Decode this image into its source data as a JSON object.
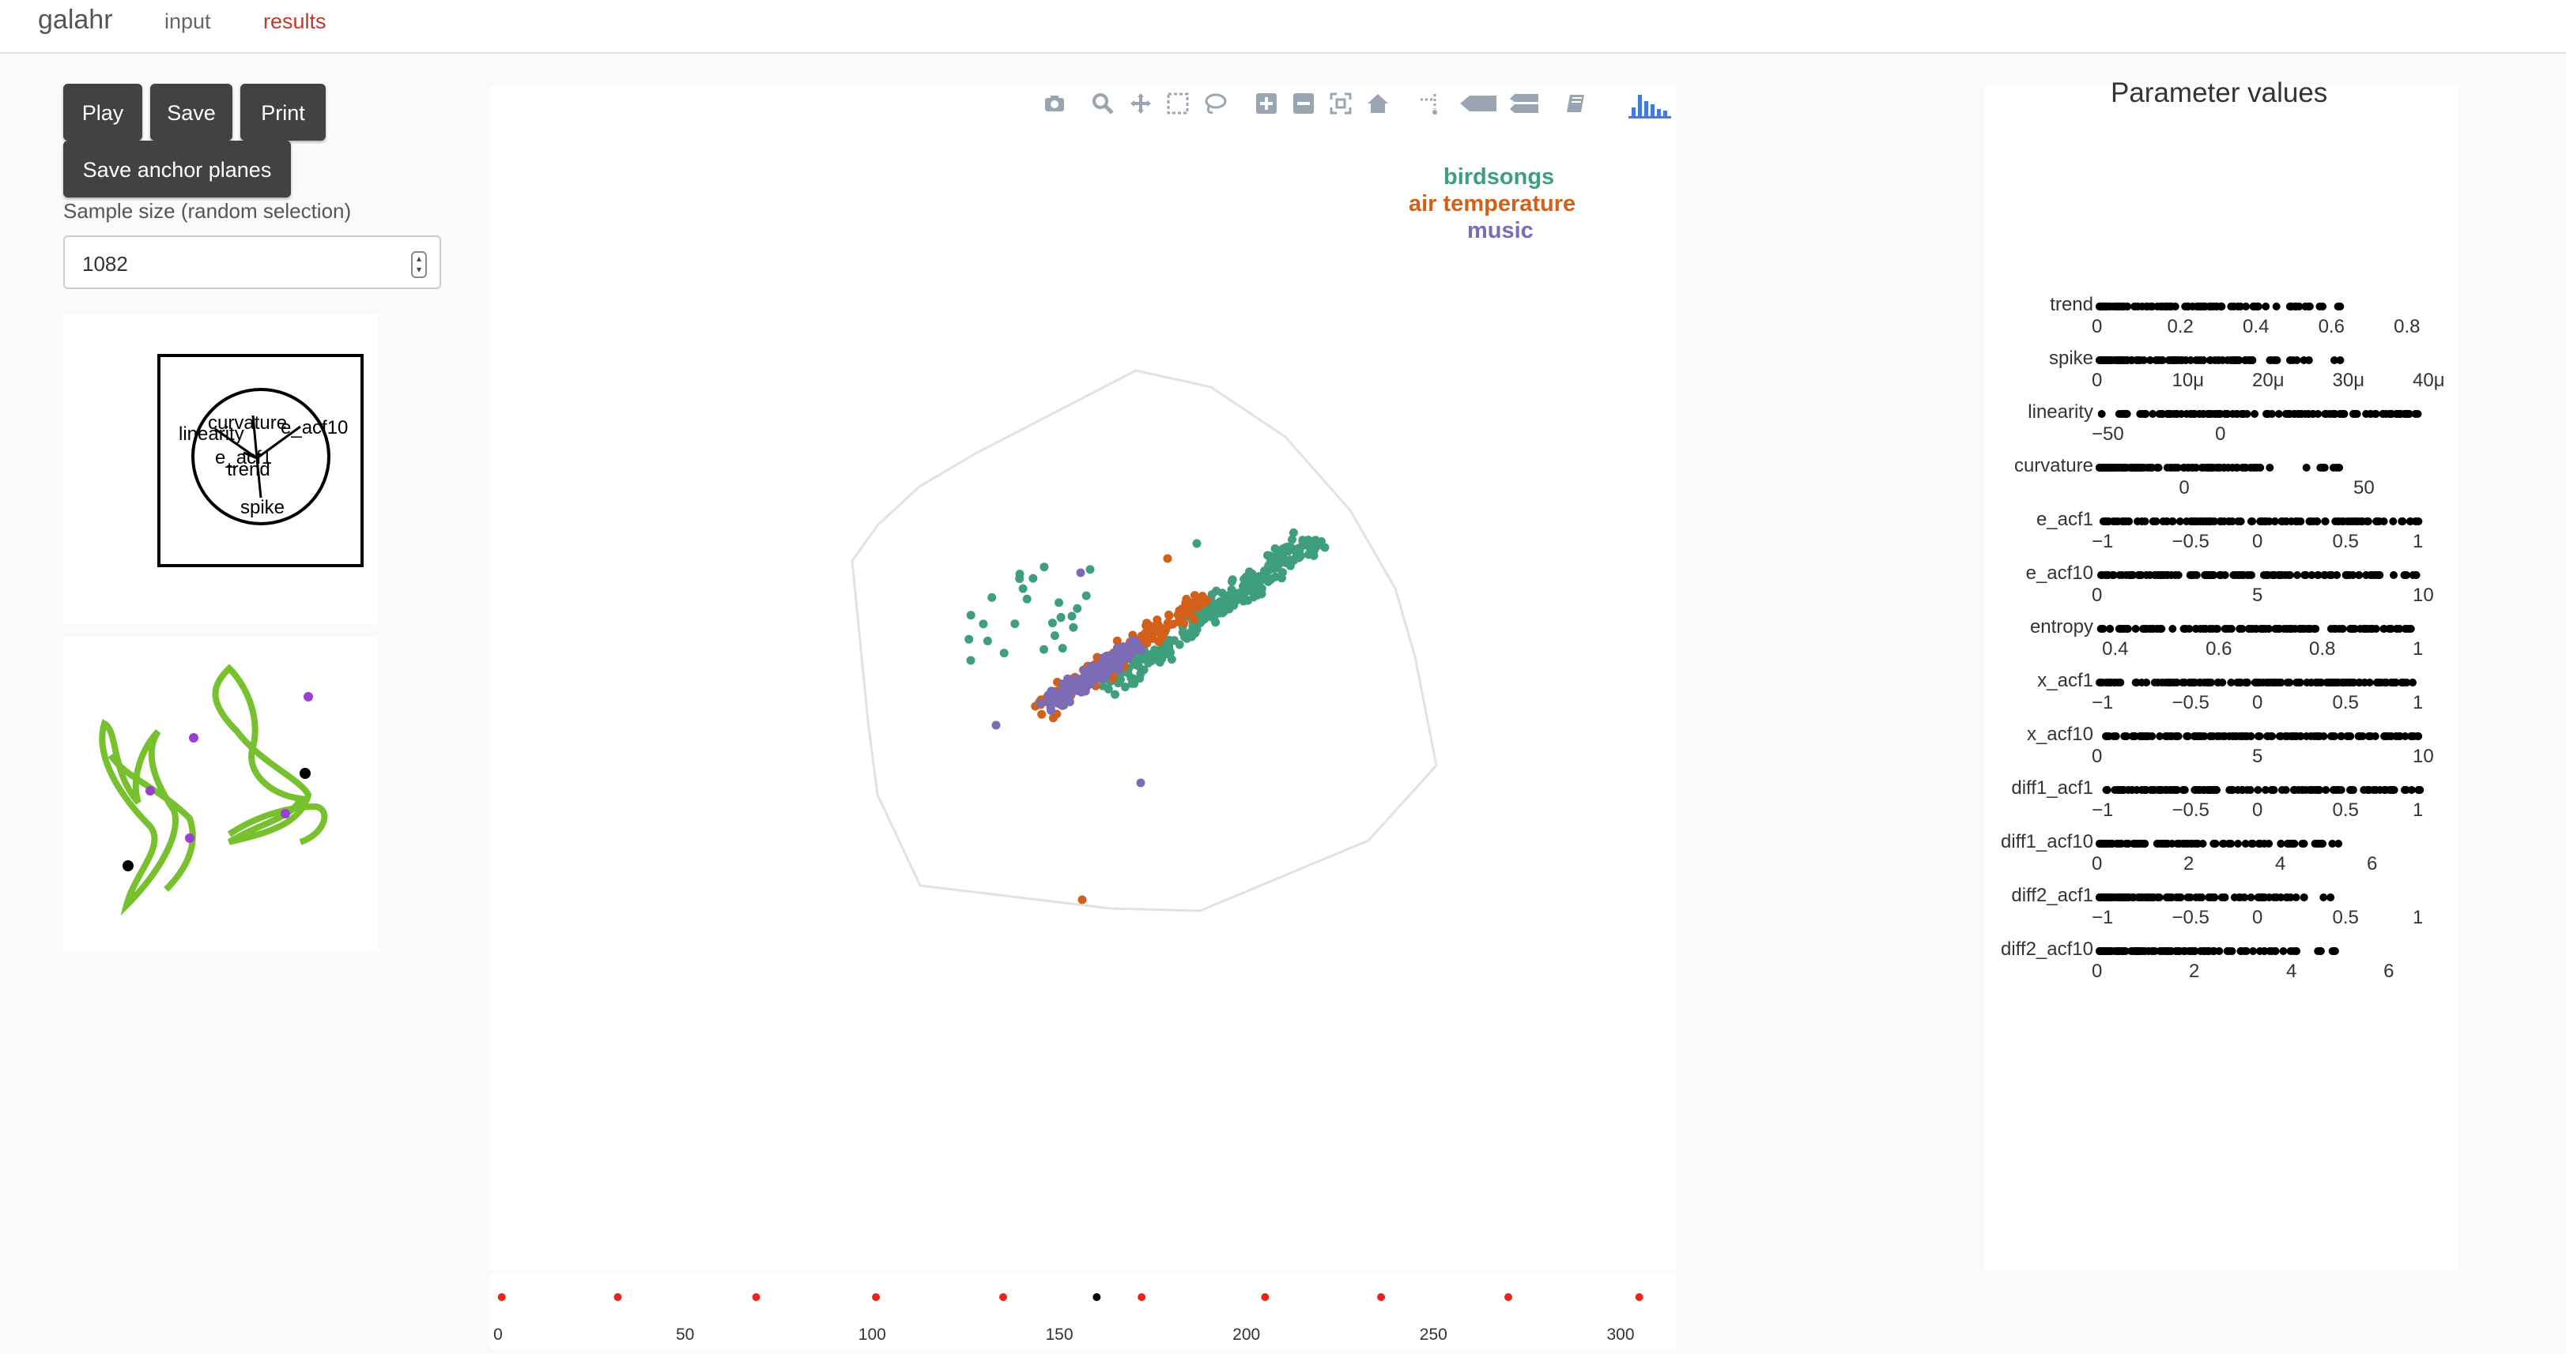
{
  "app": {
    "brand": "galahr",
    "nav": [
      {
        "label": "input",
        "active": false
      },
      {
        "label": "results",
        "active": true
      }
    ]
  },
  "controls": {
    "play_label": "Play",
    "save_label": "Save",
    "print_label": "Print",
    "save_anchor_label": "Save anchor planes",
    "sample_size_label": "Sample size (random selection)",
    "sample_size_value": "1082"
  },
  "axes_display": {
    "labels": [
      "curvature",
      "linearity",
      "e_acf10",
      "e_acf1",
      "trend",
      "spike"
    ]
  },
  "toolbar": {
    "icons": [
      "camera-icon",
      "zoom-icon",
      "pan-icon",
      "box-select-icon",
      "lasso-select-icon",
      "zoom-in-icon",
      "zoom-out-icon",
      "autoscale-icon",
      "reset-axes-icon",
      "spike-lines-icon",
      "hover-closest-icon",
      "hover-compare-icon",
      "edit-chart-icon",
      "plotly-logo-icon"
    ]
  },
  "main_plot": {
    "legend": [
      {
        "name": "birdsongs",
        "color": "#3f9f7c"
      },
      {
        "name": "air temperature",
        "color": "#d2601b"
      },
      {
        "name": "music",
        "color": "#7b6cb5"
      }
    ]
  },
  "timeline": {
    "ticks": [
      "0",
      "50",
      "100",
      "150",
      "200",
      "250",
      "300"
    ],
    "points": [
      1,
      32,
      69,
      101,
      135,
      160,
      172,
      205,
      236,
      270,
      305
    ],
    "current": 160
  },
  "parameter_panel": {
    "title": "Parameter values",
    "rows": [
      {
        "name": "trend",
        "ticks": [
          {
            "v": "0",
            "x": 0
          },
          {
            "v": "0.2",
            "x": 0.2
          },
          {
            "v": "0.4",
            "x": 0.4
          },
          {
            "v": "0.6",
            "x": 0.6
          },
          {
            "v": "0.8",
            "x": 0.8
          }
        ],
        "range": [
          0,
          0.85
        ]
      },
      {
        "name": "spike",
        "ticks": [
          {
            "v": "0",
            "x": 0
          },
          {
            "v": "10μ",
            "x": 10
          },
          {
            "v": "20μ",
            "x": 20
          },
          {
            "v": "30μ",
            "x": 30
          },
          {
            "v": "40μ",
            "x": 40
          }
        ],
        "range": [
          0,
          40
        ]
      },
      {
        "name": "linearity",
        "ticks": [
          {
            "v": "−50",
            "x": -50
          },
          {
            "v": "0",
            "x": 0
          }
        ],
        "range": [
          -50,
          80
        ]
      },
      {
        "name": "curvature",
        "ticks": [
          {
            "v": "0",
            "x": 0
          },
          {
            "v": "50",
            "x": 50
          }
        ],
        "range": [
          -25,
          67
        ]
      },
      {
        "name": "e_acf1",
        "ticks": [
          {
            "v": "−1",
            "x": -1
          },
          {
            "v": "−0.5",
            "x": -0.5
          },
          {
            "v": "0",
            "x": 0
          },
          {
            "v": "0.5",
            "x": 0.5
          },
          {
            "v": "1",
            "x": 1
          }
        ],
        "range": [
          -1,
          1
        ]
      },
      {
        "name": "e_acf10",
        "ticks": [
          {
            "v": "0",
            "x": 0
          },
          {
            "v": "5",
            "x": 5
          },
          {
            "v": "10",
            "x": 10
          }
        ],
        "range": [
          0,
          10
        ]
      },
      {
        "name": "entropy",
        "ticks": [
          {
            "v": "0.4",
            "x": 0.4
          },
          {
            "v": "0.6",
            "x": 0.6
          },
          {
            "v": "0.8",
            "x": 0.8
          },
          {
            "v": "1",
            "x": 1
          }
        ],
        "range": [
          0.38,
          1
        ]
      },
      {
        "name": "x_acf1",
        "ticks": [
          {
            "v": "−1",
            "x": -1
          },
          {
            "v": "−0.5",
            "x": -0.5
          },
          {
            "v": "0",
            "x": 0
          },
          {
            "v": "0.5",
            "x": 0.5
          },
          {
            "v": "1",
            "x": 1
          }
        ],
        "range": [
          -1,
          1
        ]
      },
      {
        "name": "x_acf10",
        "ticks": [
          {
            "v": "0",
            "x": 0
          },
          {
            "v": "5",
            "x": 5
          },
          {
            "v": "10",
            "x": 10
          }
        ],
        "range": [
          0,
          10
        ]
      },
      {
        "name": "diff1_acf1",
        "ticks": [
          {
            "v": "−1",
            "x": -1
          },
          {
            "v": "−0.5",
            "x": -0.5
          },
          {
            "v": "0",
            "x": 0
          },
          {
            "v": "0.5",
            "x": 0.5
          },
          {
            "v": "1",
            "x": 1
          }
        ],
        "range": [
          -1,
          1
        ]
      },
      {
        "name": "diff1_acf10",
        "ticks": [
          {
            "v": "0",
            "x": 0
          },
          {
            "v": "2",
            "x": 2
          },
          {
            "v": "4",
            "x": 4
          },
          {
            "v": "6",
            "x": 6
          }
        ],
        "range": [
          0,
          7
        ]
      },
      {
        "name": "diff2_acf1",
        "ticks": [
          {
            "v": "−1",
            "x": -1
          },
          {
            "v": "−0.5",
            "x": -0.5
          },
          {
            "v": "0",
            "x": 0
          },
          {
            "v": "0.5",
            "x": 0.5
          },
          {
            "v": "1",
            "x": 1
          }
        ],
        "range": [
          -1,
          1
        ]
      },
      {
        "name": "diff2_acf10",
        "ticks": [
          {
            "v": "0",
            "x": 0
          },
          {
            "v": "2",
            "x": 2
          },
          {
            "v": "4",
            "x": 4
          },
          {
            "v": "6",
            "x": 6
          }
        ],
        "range": [
          0,
          6.6
        ]
      }
    ]
  }
}
